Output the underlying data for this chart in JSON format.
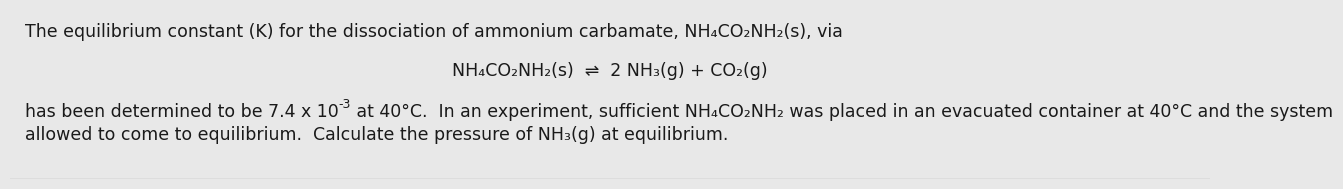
{
  "background_color": "#e8e8e8",
  "text_color": "#1a1a1a",
  "line1": "The equilibrium constant (K) for the dissociation of ammonium carbamate, NH₄CO₂NH₂(s), via",
  "equation": "NH₄CO₂NH₂(s)  ⇌  2 NH₃(g) + CO₂(g)",
  "line3_part1": "has been determined to be 7.4 x 10",
  "line3_exp": "-3",
  "line3_part2": " at 40°C.  In an experiment, sufficient NH₄CO₂NH₂ was placed in an evacuated container at 40°C and the system",
  "line4": "allowed to come to equilibrium.  Calculate the pressure of NH₃(g) at equilibrium.",
  "font_size_main": 12.5,
  "fig_width": 12.0,
  "fig_height": 1.69,
  "bottom_line_color": "#b0b0b0"
}
